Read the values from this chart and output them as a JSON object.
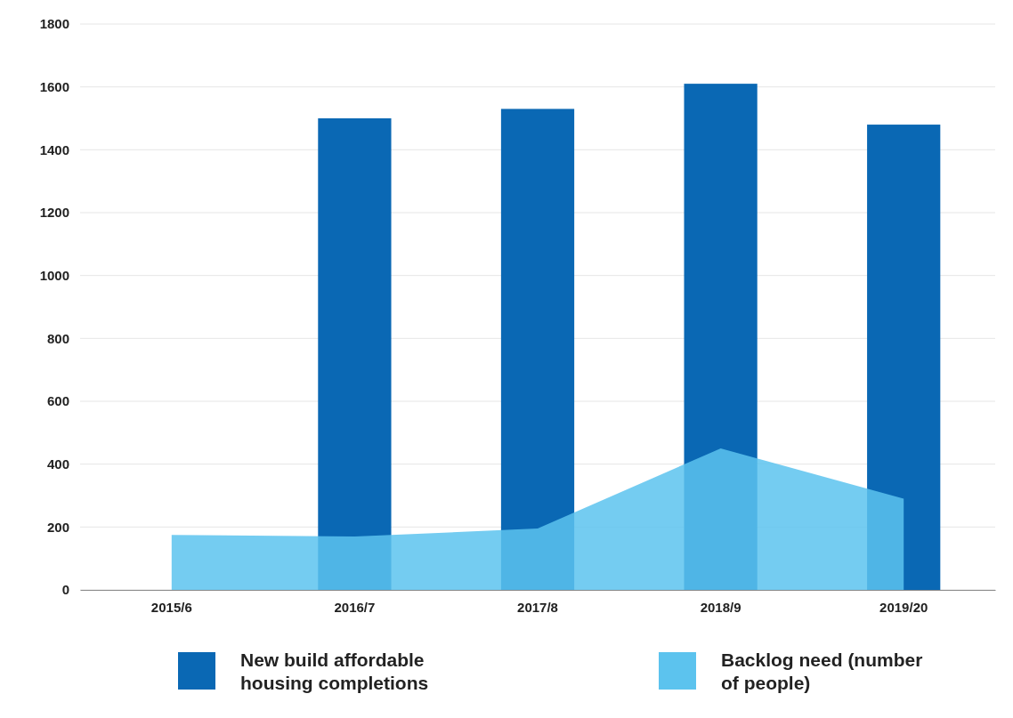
{
  "chart_data": {
    "type": "bar",
    "categories": [
      "2015/6",
      "2016/7",
      "2017/8",
      "2018/9",
      "2019/20"
    ],
    "series": [
      {
        "name": "New build affordable housing completions",
        "color": "#0a68b4",
        "values": [
          null,
          1500,
          1530,
          1610,
          1480
        ]
      },
      {
        "name": "Backlog need (number of people)",
        "type": "area",
        "color": "#5cc3ee",
        "values": [
          175,
          170,
          195,
          450,
          290
        ]
      }
    ],
    "ylim": [
      0,
      1800
    ],
    "yticks": [
      0,
      200,
      400,
      600,
      800,
      1000,
      1200,
      1400,
      1600,
      1800
    ],
    "grid": "y",
    "legend": "bottom"
  }
}
